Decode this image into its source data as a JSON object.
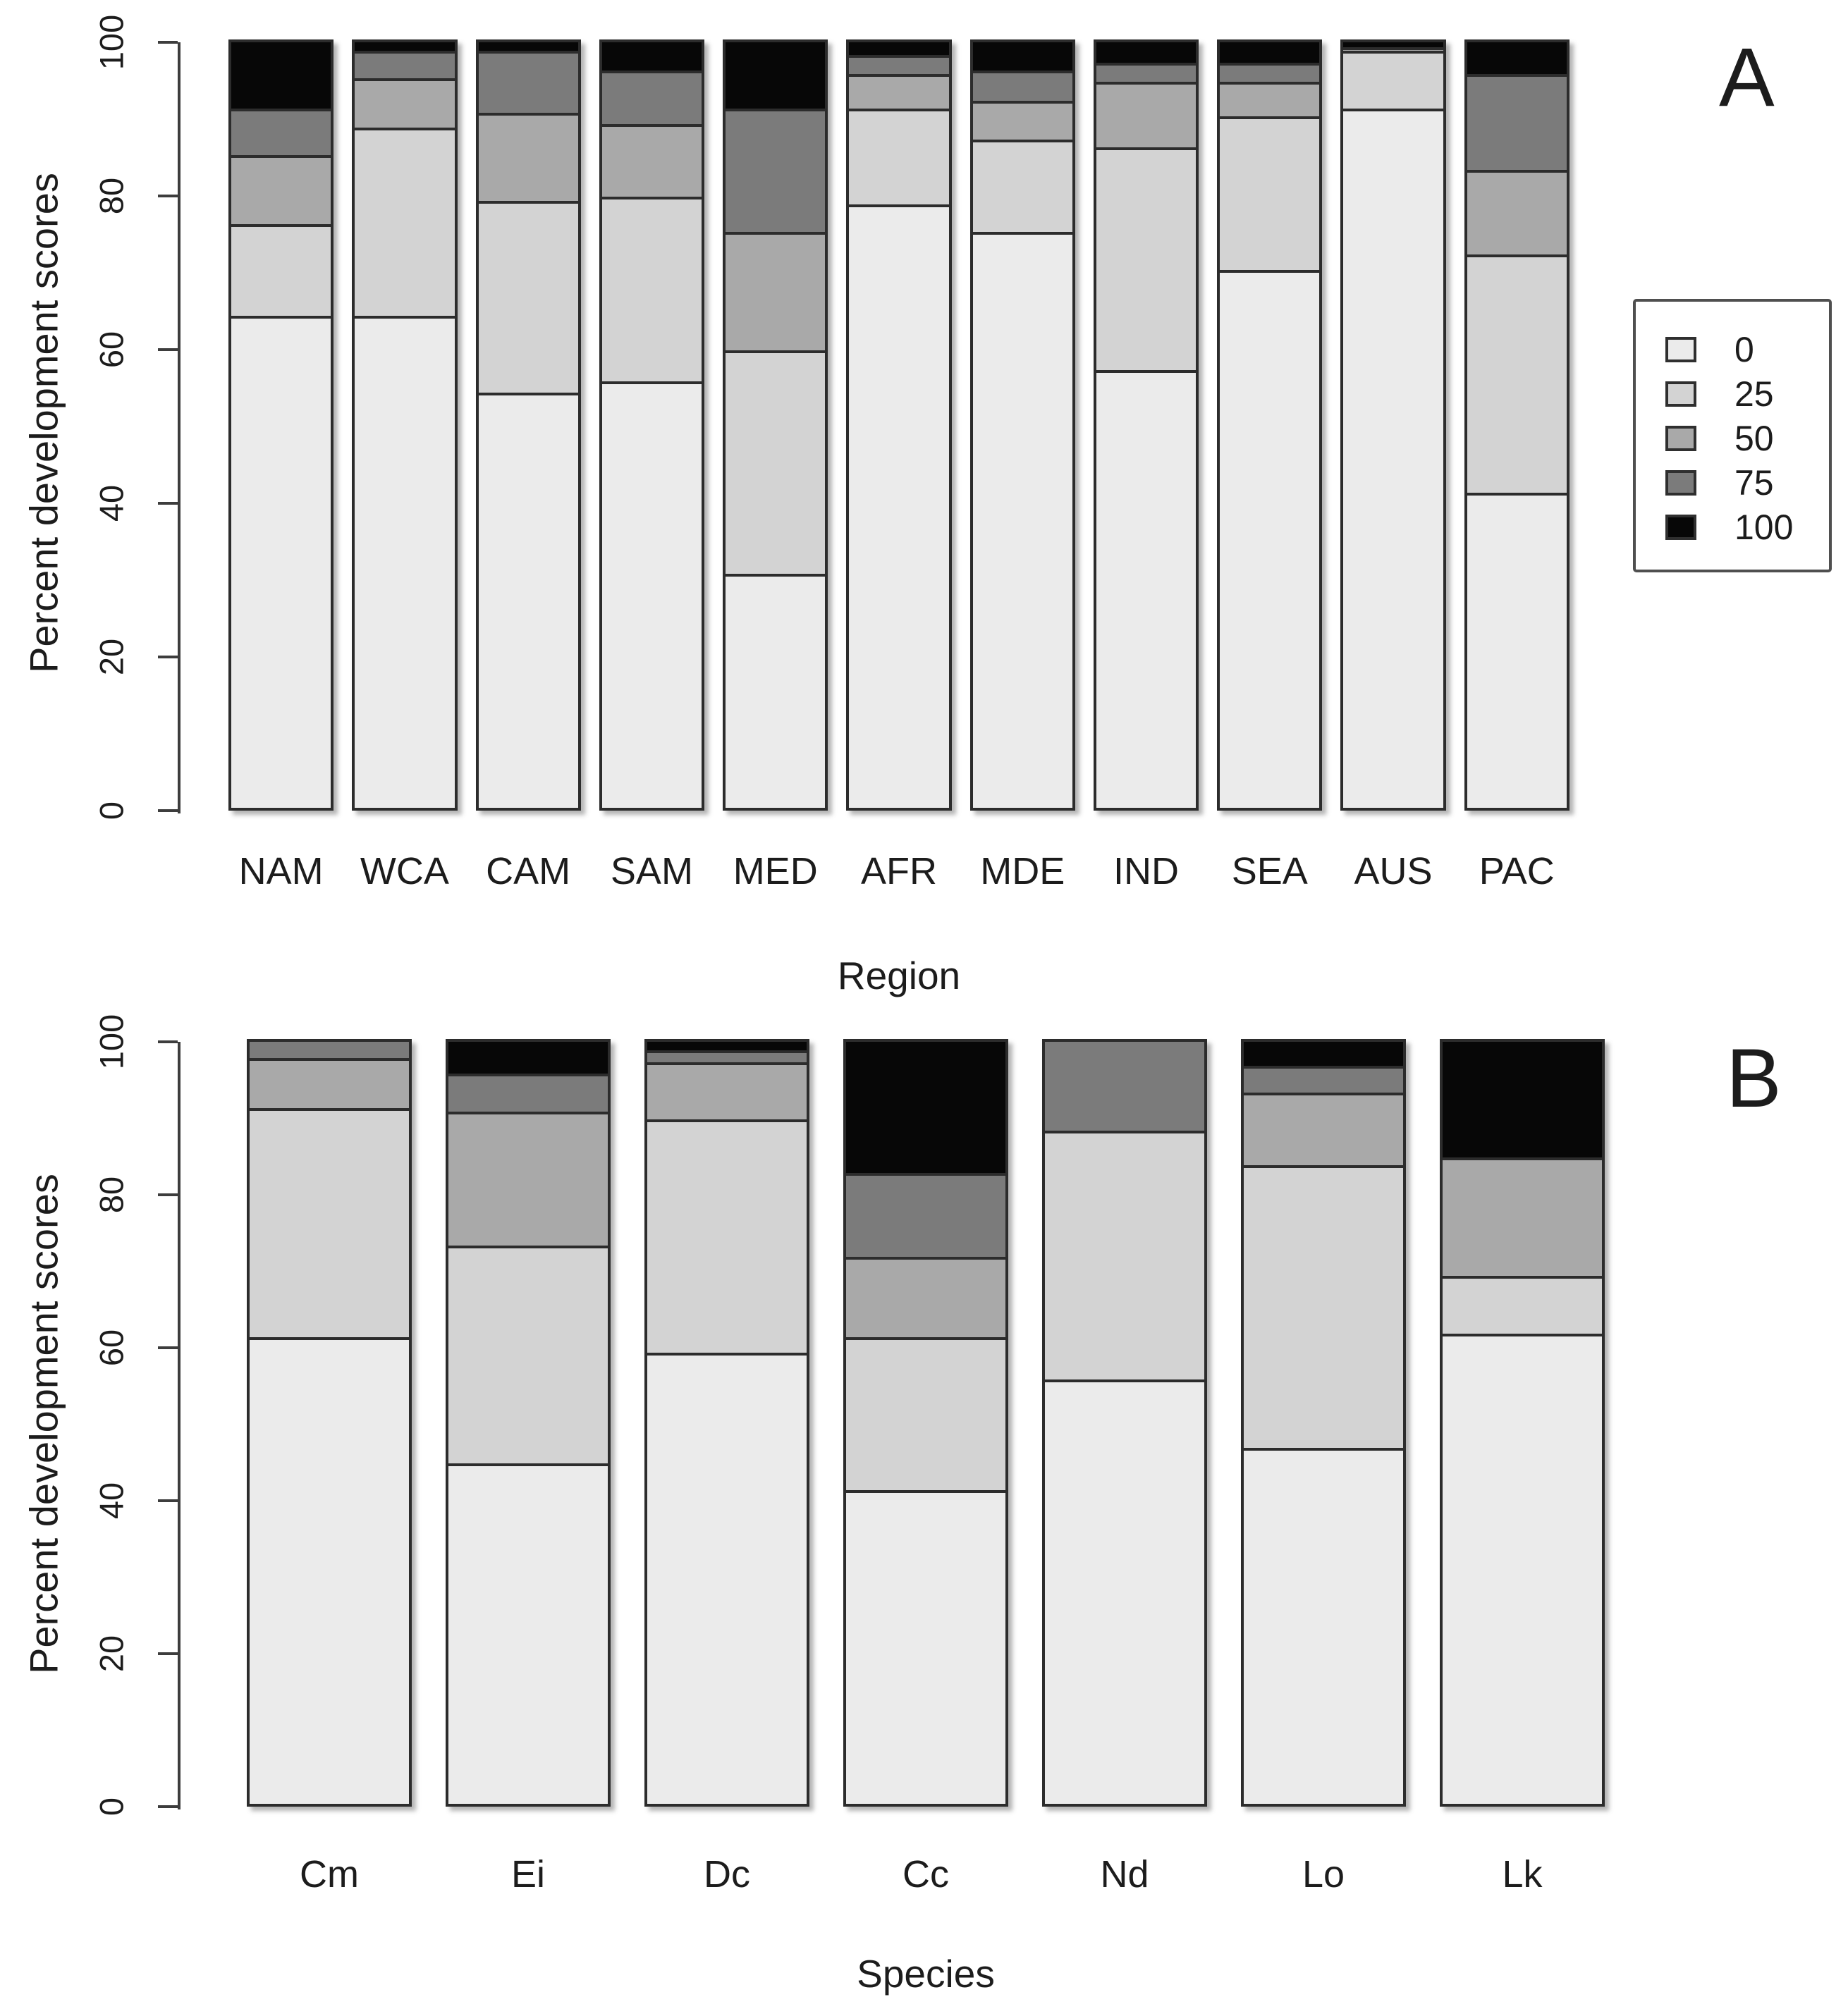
{
  "panels": {
    "a": "A",
    "b": "B"
  },
  "axis": {
    "y_min_label": "0",
    "y_max_label": "100"
  },
  "chart_data": [
    {
      "type": "bar",
      "stacked": true,
      "panel_label": "A",
      "title": "",
      "xlabel": "Region",
      "ylabel": "Percent development scores",
      "ylim": [
        0,
        100
      ],
      "yticks": [
        0,
        20,
        40,
        60,
        80,
        100
      ],
      "grid": false,
      "legend_position": "right",
      "categories": [
        "NAM",
        "WCA",
        "CAM",
        "SAM",
        "MED",
        "AFR",
        "MDE",
        "IND",
        "SEA",
        "AUS",
        "PAC"
      ],
      "series": [
        {
          "name": "0",
          "color": "#ebebeb",
          "values": [
            64,
            64,
            54,
            55.5,
            30.5,
            78.5,
            75,
            57,
            70,
            91,
            41
          ]
        },
        {
          "name": "25",
          "color": "#d3d3d3",
          "values": [
            12,
            24.5,
            25,
            24,
            29,
            12.5,
            12,
            29,
            20,
            7.5,
            31
          ]
        },
        {
          "name": "50",
          "color": "#a9a9a9",
          "values": [
            9,
            6.5,
            11.5,
            9.5,
            15.5,
            4.5,
            5,
            8.5,
            4.5,
            0.5,
            11
          ]
        },
        {
          "name": "75",
          "color": "#7b7b7b",
          "values": [
            6,
            3.5,
            8,
            7,
            16,
            2.5,
            4,
            2.5,
            2.5,
            0,
            12.5
          ]
        },
        {
          "name": "100",
          "color": "#070707",
          "values": [
            9,
            1.5,
            1.5,
            4,
            9,
            2,
            4,
            3,
            3,
            1,
            4.5
          ]
        }
      ]
    },
    {
      "type": "bar",
      "stacked": true,
      "panel_label": "B",
      "title": "",
      "xlabel": "Species",
      "ylabel": "Percent development scores",
      "ylim": [
        0,
        100
      ],
      "yticks": [
        0,
        20,
        40,
        60,
        80,
        100
      ],
      "grid": false,
      "legend_position": "none",
      "categories": [
        "Cm",
        "Ei",
        "Dc",
        "Cc",
        "Nd",
        "Lo",
        "Lk"
      ],
      "series": [
        {
          "name": "0",
          "color": "#ebebeb",
          "values": [
            61,
            44.5,
            59,
            41,
            55.5,
            46.5,
            61.5
          ]
        },
        {
          "name": "25",
          "color": "#d3d3d3",
          "values": [
            30,
            28.5,
            30.5,
            20,
            32.5,
            37,
            7.5
          ]
        },
        {
          "name": "50",
          "color": "#a9a9a9",
          "values": [
            6.5,
            17.5,
            7.5,
            10.5,
            0,
            9.5,
            15.5
          ]
        },
        {
          "name": "75",
          "color": "#7b7b7b",
          "values": [
            2.5,
            5,
            1.5,
            11,
            12,
            3.5,
            0
          ]
        },
        {
          "name": "100",
          "color": "#070707",
          "values": [
            0,
            4.5,
            1.5,
            17.5,
            0,
            3.5,
            15.5
          ]
        }
      ]
    }
  ],
  "legend": {
    "items": [
      "0",
      "25",
      "50",
      "75",
      "100"
    ]
  }
}
